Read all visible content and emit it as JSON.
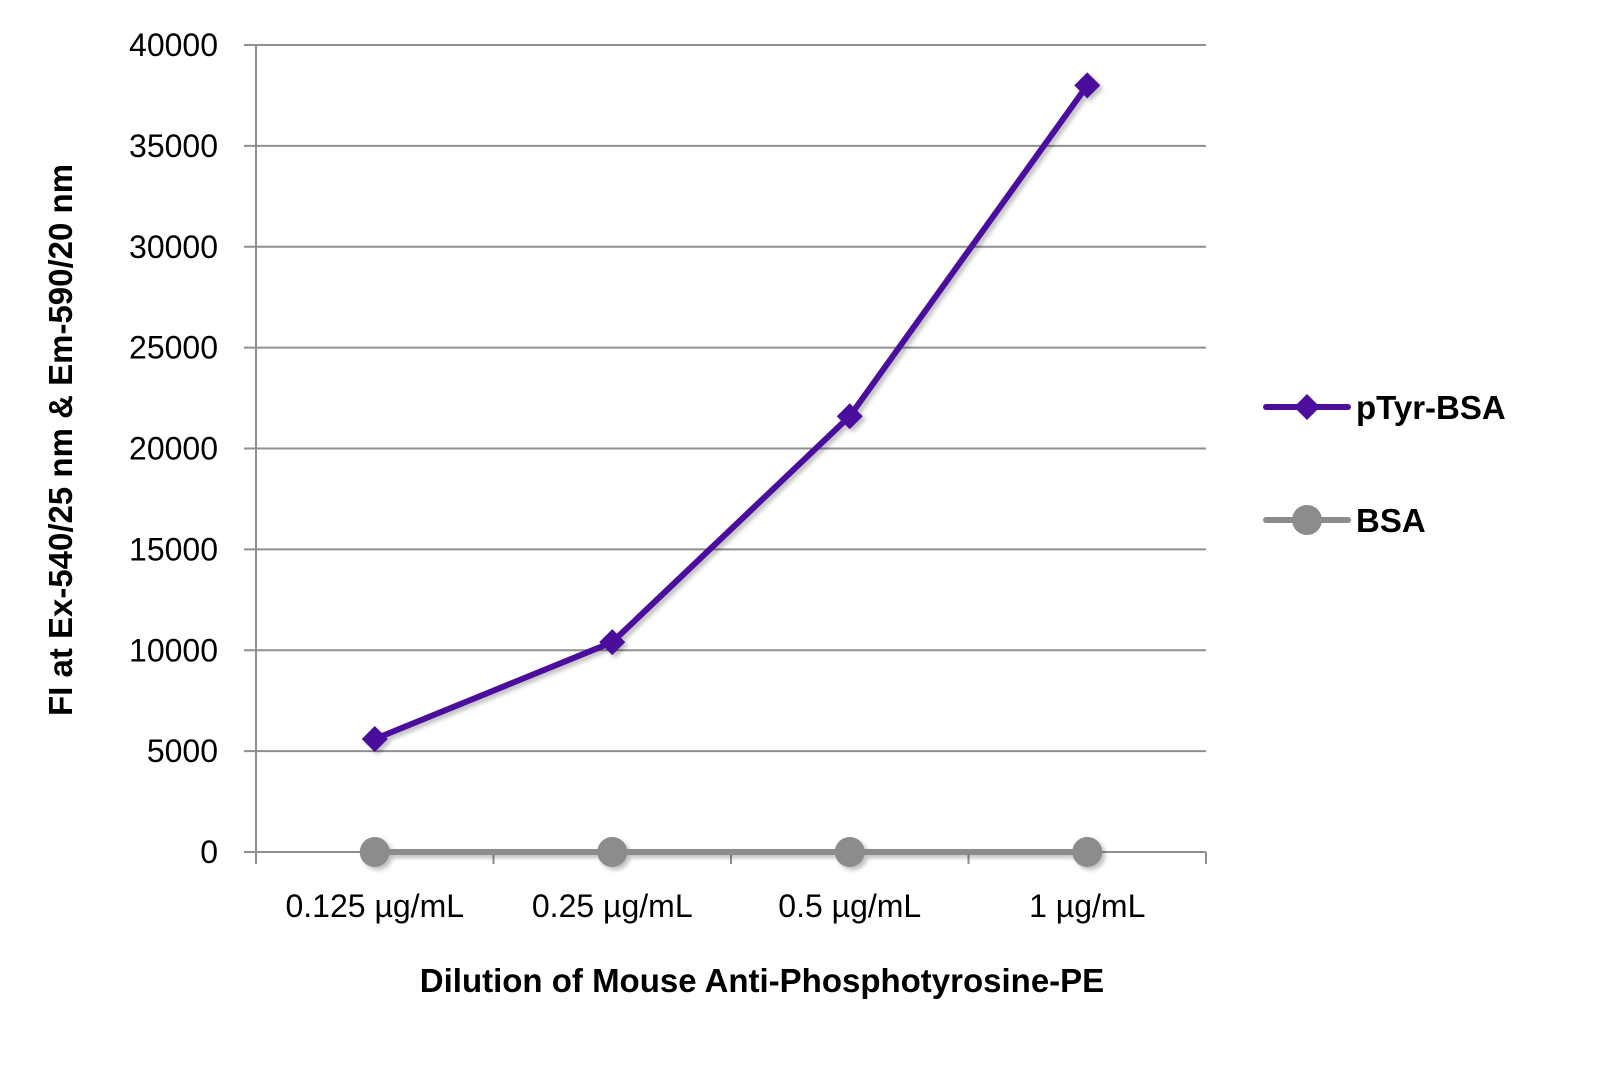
{
  "chart_data": {
    "type": "line",
    "title": "",
    "xlabel": "Dilution of Mouse Anti-Phosphotyrosine-PE",
    "ylabel": "FI at Ex-540/25 nm & Em-590/20 nm",
    "categories": [
      "0.125 µg/mL",
      "0.25 µg/mL",
      "0.5 µg/mL",
      "1 µg/mL"
    ],
    "ylim": [
      0,
      40000
    ],
    "yticks": [
      0,
      5000,
      10000,
      15000,
      20000,
      25000,
      30000,
      35000,
      40000
    ],
    "grid": "horizontal",
    "legend_position": "right",
    "series": [
      {
        "name": "pTyr-BSA",
        "values": [
          5600,
          10400,
          21600,
          38000
        ],
        "color": "#4b0f9c",
        "marker": "diamond"
      },
      {
        "name": "BSA",
        "values": [
          0,
          0,
          0,
          0
        ],
        "color": "#8c8c8c",
        "marker": "circle"
      }
    ]
  }
}
